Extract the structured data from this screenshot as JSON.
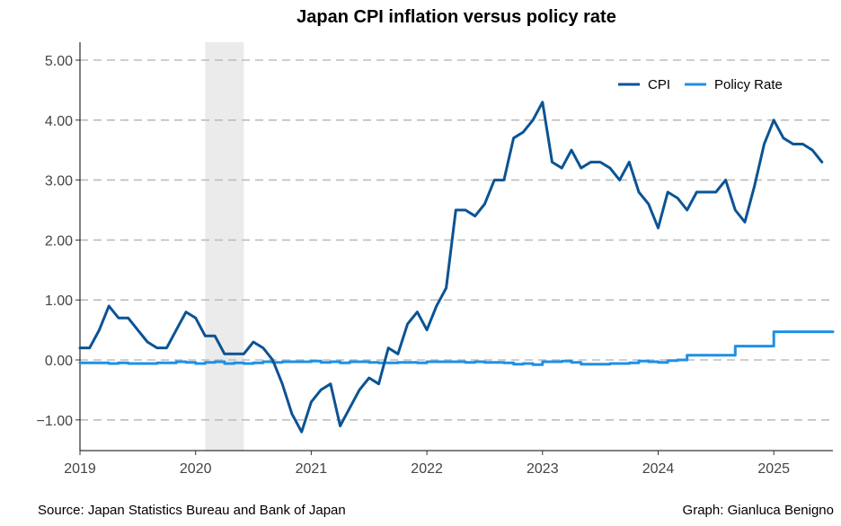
{
  "chart_data": {
    "type": "line",
    "title": "Japan CPI inflation versus policy rate",
    "xlabel": "",
    "ylabel": "",
    "x_start": "2019-01",
    "x_ticks": [
      "2019",
      "2020",
      "2021",
      "2022",
      "2023",
      "2024",
      "2025"
    ],
    "y_ticks": [
      "5.00",
      "4.00",
      "3.00",
      "2.00",
      "1.00",
      "0.00",
      "−1.00"
    ],
    "ylim": [
      -1.5,
      5.3
    ],
    "xlim": [
      2019.0,
      2025.5
    ],
    "grid": "horizontal dashed",
    "legend_position": "top-right",
    "shaded_region": {
      "start": 2020.083,
      "end": 2020.417,
      "color": "#ebebeb"
    },
    "series": [
      {
        "name": "CPI",
        "color": "#0b5394",
        "values": [
          0.2,
          0.2,
          0.5,
          0.9,
          0.7,
          0.7,
          0.5,
          0.3,
          0.2,
          0.2,
          0.5,
          0.8,
          0.7,
          0.4,
          0.4,
          0.1,
          0.1,
          0.1,
          0.3,
          0.2,
          0.0,
          -0.4,
          -0.9,
          -1.2,
          -0.7,
          -0.5,
          -0.4,
          -1.1,
          -0.8,
          -0.5,
          -0.3,
          -0.4,
          0.2,
          0.1,
          0.6,
          0.8,
          0.5,
          0.9,
          1.2,
          2.5,
          2.5,
          2.4,
          2.6,
          3.0,
          3.0,
          3.7,
          3.8,
          4.0,
          4.3,
          3.3,
          3.2,
          3.5,
          3.2,
          3.3,
          3.3,
          3.2,
          3.0,
          3.3,
          2.8,
          2.6,
          2.2,
          2.8,
          2.7,
          2.5,
          2.8,
          2.8,
          2.8,
          3.0,
          2.5,
          2.3,
          2.9,
          3.6,
          4.0,
          3.7,
          3.6,
          3.6,
          3.5,
          3.3
        ]
      },
      {
        "name": "Policy Rate",
        "color": "#1e90e6",
        "values": [
          -0.05,
          -0.05,
          -0.05,
          -0.06,
          -0.05,
          -0.06,
          -0.06,
          -0.06,
          -0.05,
          -0.05,
          -0.03,
          -0.04,
          -0.06,
          -0.04,
          -0.03,
          -0.06,
          -0.05,
          -0.06,
          -0.05,
          -0.03,
          -0.04,
          -0.03,
          -0.03,
          -0.03,
          -0.02,
          -0.04,
          -0.03,
          -0.05,
          -0.03,
          -0.03,
          -0.04,
          -0.05,
          -0.05,
          -0.04,
          -0.04,
          -0.05,
          -0.03,
          -0.03,
          -0.03,
          -0.03,
          -0.04,
          -0.03,
          -0.04,
          -0.04,
          -0.05,
          -0.07,
          -0.06,
          -0.08,
          -0.03,
          -0.03,
          -0.02,
          -0.04,
          -0.07,
          -0.07,
          -0.07,
          -0.06,
          -0.06,
          -0.05,
          -0.02,
          -0.03,
          -0.04,
          -0.01,
          0.0,
          0.08,
          0.08,
          0.08,
          0.08,
          0.08,
          0.23,
          0.23,
          0.23,
          0.23,
          0.47,
          0.47,
          0.47,
          0.47,
          0.47,
          0.47,
          0.47
        ]
      }
    ]
  },
  "footer": {
    "source": "Source: Japan Statistics Bureau and Bank of Japan",
    "credit": "Graph: Gianluca Benigno"
  }
}
